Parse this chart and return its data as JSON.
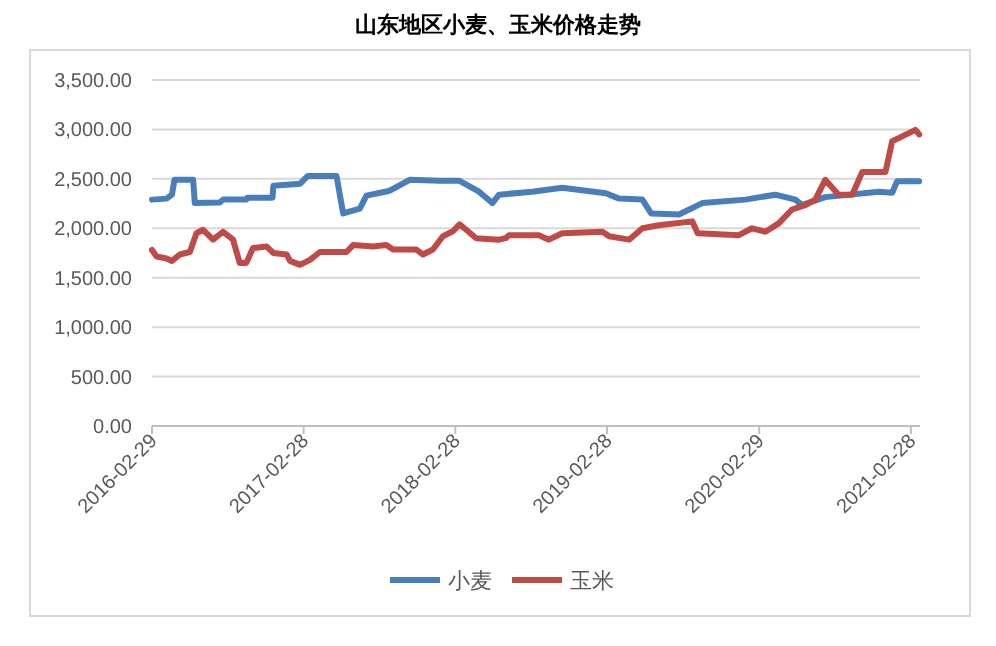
{
  "chart_data": {
    "type": "line",
    "title": "山东地区小麦、玉米价格走势",
    "xlim": [
      "2016-02-29",
      "2021-03-22"
    ],
    "xticks": [
      "2016-02-29",
      "2017-02-28",
      "2018-02-28",
      "2019-02-28",
      "2020-02-29",
      "2021-02-28"
    ],
    "ylim": [
      0,
      3500
    ],
    "yticks": [
      {
        "value": 0,
        "label": "0.00"
      },
      {
        "value": 500,
        "label": "500.00"
      },
      {
        "value": 1000,
        "label": "1,000.00"
      },
      {
        "value": 1500,
        "label": "1,500.00"
      },
      {
        "value": 2000,
        "label": "2,000.00"
      },
      {
        "value": 2500,
        "label": "2,500.00"
      },
      {
        "value": 3000,
        "label": "3,000.00"
      },
      {
        "value": 3500,
        "label": "3,500.00"
      }
    ],
    "grid": "y",
    "legend": "bottom",
    "marker": "none",
    "line_style": "solid",
    "series": [
      {
        "name": "小麦",
        "color": "#4a7ebb",
        "x": [
          "2016-02-29",
          "2016-04-04",
          "2016-04-17",
          "2016-04-23",
          "2016-06-07",
          "2016-06-11",
          "2016-08-10",
          "2016-08-18",
          "2016-10-13",
          "2016-10-15",
          "2016-12-15",
          "2016-12-17",
          "2017-02-19",
          "2017-03-10",
          "2017-05-18",
          "2017-06-03",
          "2017-07-13",
          "2017-07-29",
          "2017-09-23",
          "2017-11-10",
          "2018-01-21",
          "2018-03-10",
          "2018-04-26",
          "2018-05-28",
          "2018-06-13",
          "2018-09-01",
          "2018-11-12",
          "2019-02-25",
          "2019-03-29",
          "2019-05-24",
          "2019-06-14",
          "2019-08-20",
          "2019-10-15",
          "2020-01-27",
          "2020-04-08",
          "2020-05-26",
          "2020-06-11",
          "2020-08-06",
          "2020-12-13",
          "2021-01-14",
          "2021-01-26",
          "2021-03-20"
        ],
        "values": [
          2290,
          2300,
          2340,
          2490,
          2490,
          2255,
          2260,
          2290,
          2290,
          2310,
          2310,
          2430,
          2450,
          2530,
          2530,
          2150,
          2200,
          2330,
          2380,
          2490,
          2480,
          2480,
          2370,
          2255,
          2340,
          2370,
          2410,
          2355,
          2300,
          2290,
          2150,
          2140,
          2255,
          2290,
          2340,
          2290,
          2235,
          2315,
          2370,
          2360,
          2476,
          2476
        ]
      },
      {
        "name": "玉米",
        "color": "#be4b48",
        "x": [
          "2016-02-29",
          "2016-03-11",
          "2016-04-04",
          "2016-04-17",
          "2016-05-06",
          "2016-05-30",
          "2016-06-15",
          "2016-07-01",
          "2016-07-25",
          "2016-08-18",
          "2016-09-11",
          "2016-09-27",
          "2016-10-13",
          "2016-10-29",
          "2016-12-01",
          "2016-12-17",
          "2017-01-18",
          "2017-01-26",
          "2017-02-19",
          "2017-03-15",
          "2017-04-08",
          "2017-06-11",
          "2017-06-27",
          "2017-08-14",
          "2017-09-15",
          "2017-10-01",
          "2017-11-26",
          "2017-12-12",
          "2018-01-05",
          "2018-01-29",
          "2018-02-22",
          "2018-03-10",
          "2018-03-26",
          "2018-04-19",
          "2018-06-13",
          "2018-06-29",
          "2018-07-07",
          "2018-09-17",
          "2018-10-11",
          "2018-11-12",
          "2019-02-17",
          "2019-03-05",
          "2019-04-22",
          "2019-05-24",
          "2019-07-03",
          "2019-09-21",
          "2019-10-04",
          "2020-01-11",
          "2020-02-12",
          "2020-03-15",
          "2020-04-16",
          "2020-05-18",
          "2020-06-19",
          "2020-07-13",
          "2020-08-06",
          "2020-09-07",
          "2020-10-10",
          "2020-11-03",
          "2020-12-29",
          "2021-01-14",
          "2021-02-07",
          "2021-03-11",
          "2021-03-20"
        ],
        "values": [
          1780,
          1715,
          1695,
          1670,
          1735,
          1760,
          1950,
          1985,
          1885,
          1965,
          1885,
          1650,
          1650,
          1800,
          1815,
          1750,
          1735,
          1670,
          1630,
          1680,
          1760,
          1760,
          1830,
          1815,
          1830,
          1785,
          1785,
          1735,
          1785,
          1920,
          1970,
          2040,
          1985,
          1900,
          1885,
          1900,
          1930,
          1930,
          1885,
          1950,
          1965,
          1920,
          1885,
          2000,
          2030,
          2070,
          1950,
          1930,
          2000,
          1965,
          2050,
          2190,
          2235,
          2290,
          2490,
          2340,
          2340,
          2570,
          2570,
          2880,
          2930,
          2995,
          2950
        ]
      }
    ]
  }
}
